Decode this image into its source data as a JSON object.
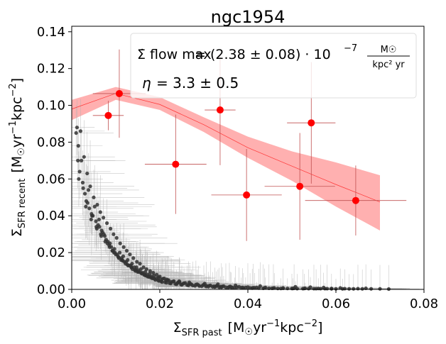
{
  "chart_data": {
    "type": "scatter",
    "title": "ngc1954",
    "xlabel": "Σ_SFR past [M☉yr⁻¹kpc⁻²]",
    "ylabel": "Σ_SFR recent [M☉yr⁻¹kpc⁻²]",
    "xlim": [
      0.0,
      0.08
    ],
    "ylim": [
      0.0,
      0.143
    ],
    "xticks": [
      "0.00",
      "0.02",
      "0.04",
      "0.06",
      "0.08"
    ],
    "yticks": [
      "0.00",
      "0.02",
      "0.04",
      "0.06",
      "0.08",
      "0.10",
      "0.12",
      "0.14"
    ],
    "grid": false,
    "legend": {
      "placement": "top-right",
      "flow_label": "Σ̇ flow max",
      "flow_value": "= (2.38 ± 0.08) · 10",
      "flow_exp": "−7",
      "flow_units_num": "M☉",
      "flow_units_den": "kpc² yr",
      "eta_label": "η",
      "eta_value": "= 3.3 ± 0.5"
    },
    "binned_points": {
      "color": "#ff0000",
      "x": [
        0.0083,
        0.0108,
        0.0236,
        0.0337,
        0.0397,
        0.0518,
        0.0544,
        0.0645
      ],
      "y": [
        0.0945,
        0.1064,
        0.068,
        0.0975,
        0.0513,
        0.056,
        0.0905,
        0.0483
      ],
      "xerr": [
        0.0035,
        0.006,
        0.007,
        0.0035,
        0.008,
        0.008,
        0.0055,
        0.0115
      ],
      "yerr": [
        0.008,
        0.024,
        0.027,
        0.03,
        0.025,
        0.029,
        0.033,
        0.019
      ]
    },
    "model_curve": {
      "color": "#ff0000",
      "band_color": "#ffb0b0",
      "x": [
        0.0,
        0.01,
        0.02,
        0.03,
        0.04,
        0.05,
        0.06,
        0.07
      ],
      "y": [
        0.098,
        0.1065,
        0.1005,
        0.0895,
        0.077,
        0.067,
        0.057,
        0.0475
      ],
      "lo": [
        0.092,
        0.103,
        0.0975,
        0.0855,
        0.0715,
        0.059,
        0.045,
        0.032
      ],
      "hi": [
        0.103,
        0.11,
        0.1045,
        0.0935,
        0.083,
        0.075,
        0.069,
        0.062
      ]
    },
    "scatter_points": {
      "color": "#333333",
      "x": [
        0.0012,
        0.002,
        0.0028,
        0.0035,
        0.0042,
        0.005,
        0.0058,
        0.0065,
        0.0072,
        0.008,
        0.0088,
        0.0095,
        0.0102,
        0.011,
        0.0118,
        0.0125,
        0.0132,
        0.014,
        0.0148,
        0.0155,
        0.0163,
        0.017,
        0.0178,
        0.0185,
        0.0193,
        0.02,
        0.021,
        0.022,
        0.0232,
        0.0245,
        0.0258,
        0.027,
        0.0285,
        0.03,
        0.0315,
        0.033,
        0.0345,
        0.036,
        0.038,
        0.04,
        0.042,
        0.044,
        0.046,
        0.048,
        0.0505,
        0.053,
        0.056,
        0.059,
        0.062,
        0.065,
        0.0015,
        0.0025,
        0.0033,
        0.0045,
        0.0055,
        0.0063,
        0.007,
        0.0078,
        0.0085,
        0.0092,
        0.01,
        0.0107,
        0.0115,
        0.0122,
        0.013,
        0.0138,
        0.0145,
        0.0152,
        0.016,
        0.0168,
        0.0175,
        0.0183,
        0.019,
        0.0198,
        0.0205,
        0.0215,
        0.0225,
        0.0238,
        0.025,
        0.0265,
        0.028,
        0.0295,
        0.031,
        0.0325,
        0.034,
        0.0355,
        0.037,
        0.039,
        0.041,
        0.0435,
        0.0455,
        0.0475,
        0.05,
        0.0525,
        0.055,
        0.0575,
        0.06,
        0.063,
        0.066,
        0.07,
        0.0018,
        0.003,
        0.004,
        0.0048,
        0.006,
        0.0068,
        0.0075,
        0.0082,
        0.009,
        0.0098,
        0.0105,
        0.0112,
        0.012,
        0.0128,
        0.0135,
        0.0143,
        0.015,
        0.0158,
        0.0165,
        0.0172,
        0.018,
        0.0188,
        0.0196,
        0.0203,
        0.0212,
        0.0222,
        0.0235,
        0.0248,
        0.0262,
        0.0275,
        0.029,
        0.0305,
        0.032,
        0.0335,
        0.035,
        0.0365,
        0.0385,
        0.0405,
        0.0425,
        0.0448,
        0.0468,
        0.049,
        0.0512,
        0.0538,
        0.0565,
        0.059,
        0.0615,
        0.064,
        0.068,
        0.072,
        0.001,
        0.0022,
        0.0038,
        0.0052,
        0.0062,
        0.0073,
        0.0087,
        0.0097,
        0.0109,
        0.0117,
        0.0127,
        0.0137,
        0.0147,
        0.0157,
        0.0167,
        0.0177,
        0.0187,
        0.0197,
        0.0207,
        0.0218,
        0.023,
        0.0242,
        0.0255,
        0.0268,
        0.0282,
        0.0298,
        0.0312,
        0.0328,
        0.0342,
        0.0358,
        0.0375,
        0.0395,
        0.0415,
        0.0438,
        0.0458,
        0.048,
        0.0502,
        0.0528,
        0.0555,
        0.058,
        0.0016,
        0.0032,
        0.0044,
        0.0057,
        0.0067,
        0.0081,
        0.0093,
        0.0103,
        0.0113,
        0.0124,
        0.0134,
        0.0142,
        0.0151,
        0.0161,
        0.0171,
        0.0181,
        0.0193,
        0.0203,
        0.0214,
        0.0226,
        0.024,
        0.0253,
        0.0272,
        0.0288,
        0.0306,
        0.0323,
        0.0338,
        0.0362,
        0.0388,
        0.0412,
        0.0014,
        0.0026,
        0.0036,
        0.0046,
        0.0056,
        0.0066,
        0.0076,
        0.0086,
        0.0096,
        0.0106,
        0.0116,
        0.0126,
        0.0136,
        0.0146,
        0.0156,
        0.0166,
        0.0176,
        0.0186,
        0.0216,
        0.0244,
        0.0267,
        0.0302,
        0.0332,
        0.0372,
        0.0428,
        0.0508,
        0.0542,
        0.0572,
        0.061,
        0.0668
      ],
      "y": [
        0.088,
        0.086,
        0.072,
        0.063,
        0.056,
        0.05,
        0.046,
        0.042,
        0.039,
        0.036,
        0.033,
        0.03,
        0.028,
        0.025,
        0.023,
        0.021,
        0.019,
        0.017,
        0.015,
        0.014,
        0.012,
        0.011,
        0.01,
        0.009,
        0.008,
        0.007,
        0.006,
        0.005,
        0.0045,
        0.004,
        0.0035,
        0.003,
        0.0028,
        0.0025,
        0.0022,
        0.002,
        0.0018,
        0.0016,
        0.0014,
        0.0012,
        0.001,
        0.001,
        0.0008,
        0.0008,
        0.0006,
        0.0006,
        0.0005,
        0.0005,
        0.0004,
        0.0004,
        0.078,
        0.058,
        0.048,
        0.041,
        0.037,
        0.034,
        0.031,
        0.027,
        0.024,
        0.021,
        0.019,
        0.017,
        0.016,
        0.014,
        0.013,
        0.011,
        0.01,
        0.0095,
        0.0085,
        0.0075,
        0.0068,
        0.006,
        0.0052,
        0.0046,
        0.004,
        0.0036,
        0.0032,
        0.0028,
        0.0025,
        0.0022,
        0.0019,
        0.0017,
        0.0015,
        0.0013,
        0.0012,
        0.001,
        0.0009,
        0.0008,
        0.0007,
        0.0006,
        0.0006,
        0.0005,
        0.0005,
        0.0004,
        0.0004,
        0.0004,
        0.0003,
        0.0003,
        0.0003,
        0.0003,
        0.064,
        0.052,
        0.044,
        0.04,
        0.035,
        0.032,
        0.029,
        0.026,
        0.023,
        0.02,
        0.018,
        0.016,
        0.015,
        0.013,
        0.012,
        0.0105,
        0.0095,
        0.0088,
        0.0078,
        0.007,
        0.0064,
        0.0057,
        0.005,
        0.0044,
        0.0039,
        0.0034,
        0.003,
        0.0027,
        0.0024,
        0.0021,
        0.0018,
        0.0016,
        0.0014,
        0.0012,
        0.0011,
        0.001,
        0.0009,
        0.0008,
        0.0007,
        0.0006,
        0.0005,
        0.0005,
        0.0004,
        0.0004,
        0.0004,
        0.0003,
        0.0003,
        0.0003,
        0.0003,
        0.0002,
        0.085,
        0.07,
        0.054,
        0.045,
        0.038,
        0.03,
        0.025,
        0.022,
        0.02,
        0.018,
        0.016,
        0.014,
        0.012,
        0.011,
        0.0095,
        0.0085,
        0.0075,
        0.0065,
        0.0058,
        0.005,
        0.0043,
        0.0038,
        0.0034,
        0.003,
        0.0026,
        0.0023,
        0.002,
        0.0018,
        0.0016,
        0.0014,
        0.0012,
        0.001,
        0.0009,
        0.0008,
        0.0007,
        0.0006,
        0.0005,
        0.0005,
        0.0004,
        0.0004,
        0.06,
        0.045,
        0.038,
        0.033,
        0.029,
        0.025,
        0.021,
        0.019,
        0.017,
        0.015,
        0.013,
        0.012,
        0.0105,
        0.009,
        0.008,
        0.007,
        0.006,
        0.0055,
        0.0048,
        0.0041,
        0.0035,
        0.0031,
        0.0027,
        0.0023,
        0.002,
        0.0017,
        0.0015,
        0.0012,
        0.001,
        0.0009,
        0.07,
        0.055,
        0.047,
        0.04,
        0.034,
        0.03,
        0.026,
        0.023,
        0.02,
        0.0175,
        0.0155,
        0.0135,
        0.012,
        0.0105,
        0.0092,
        0.008,
        0.007,
        0.0062,
        0.0054,
        0.0045,
        0.0038,
        0.0032,
        0.0028,
        0.0022,
        0.0018,
        0.0014,
        0.0012,
        0.001,
        0.0008,
        0.0006
      ]
    }
  }
}
